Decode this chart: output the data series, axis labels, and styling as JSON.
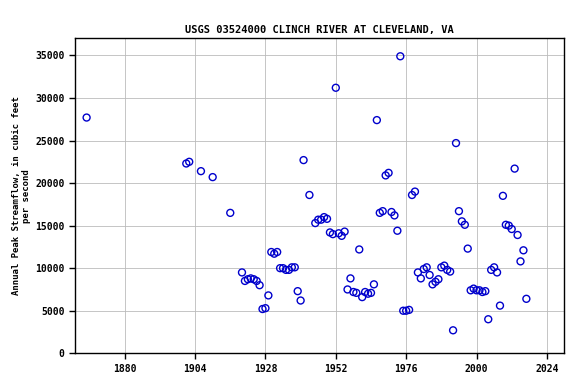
{
  "title": "USGS 03524000 CLINCH RIVER AT CLEVELAND, VA",
  "ylabel": "Annual Peak Streamflow, in cubic feet\nper second",
  "xlim": [
    1863,
    2030
  ],
  "ylim": [
    0,
    37000
  ],
  "yticks": [
    0,
    5000,
    10000,
    15000,
    20000,
    25000,
    30000,
    35000
  ],
  "xticks": [
    1880,
    1904,
    1928,
    1952,
    1976,
    2000,
    2024
  ],
  "marker_color": "#0000CC",
  "marker_size": 5,
  "marker_lw": 1.0,
  "background_color": "#ffffff",
  "grid_color": "#bbbbbb",
  "title_fontsize": 7.5,
  "label_fontsize": 6.5,
  "tick_fontsize": 7,
  "data": [
    [
      1867,
      27700
    ],
    [
      1901,
      22300
    ],
    [
      1902,
      22500
    ],
    [
      1906,
      21400
    ],
    [
      1910,
      20700
    ],
    [
      1916,
      16500
    ],
    [
      1920,
      9500
    ],
    [
      1921,
      8500
    ],
    [
      1922,
      8700
    ],
    [
      1923,
      8800
    ],
    [
      1924,
      8700
    ],
    [
      1925,
      8500
    ],
    [
      1926,
      8000
    ],
    [
      1927,
      5200
    ],
    [
      1928,
      5300
    ],
    [
      1929,
      6800
    ],
    [
      1930,
      11900
    ],
    [
      1931,
      11700
    ],
    [
      1932,
      11900
    ],
    [
      1933,
      10000
    ],
    [
      1934,
      10000
    ],
    [
      1935,
      9800
    ],
    [
      1936,
      9800
    ],
    [
      1937,
      10100
    ],
    [
      1938,
      10100
    ],
    [
      1939,
      7300
    ],
    [
      1940,
      6200
    ],
    [
      1941,
      22700
    ],
    [
      1943,
      18600
    ],
    [
      1945,
      15300
    ],
    [
      1946,
      15700
    ],
    [
      1947,
      15700
    ],
    [
      1948,
      16000
    ],
    [
      1949,
      15800
    ],
    [
      1950,
      14200
    ],
    [
      1951,
      14000
    ],
    [
      1952,
      31200
    ],
    [
      1953,
      14100
    ],
    [
      1954,
      13800
    ],
    [
      1955,
      14300
    ],
    [
      1956,
      7500
    ],
    [
      1957,
      8800
    ],
    [
      1958,
      7200
    ],
    [
      1959,
      7100
    ],
    [
      1960,
      12200
    ],
    [
      1961,
      6600
    ],
    [
      1962,
      7200
    ],
    [
      1963,
      7000
    ],
    [
      1964,
      7100
    ],
    [
      1965,
      8100
    ],
    [
      1966,
      27400
    ],
    [
      1967,
      16500
    ],
    [
      1968,
      16700
    ],
    [
      1969,
      20900
    ],
    [
      1970,
      21200
    ],
    [
      1971,
      16600
    ],
    [
      1972,
      16200
    ],
    [
      1973,
      14400
    ],
    [
      1974,
      34900
    ],
    [
      1975,
      5000
    ],
    [
      1976,
      5000
    ],
    [
      1977,
      5100
    ],
    [
      1978,
      18600
    ],
    [
      1979,
      19000
    ],
    [
      1980,
      9500
    ],
    [
      1981,
      8800
    ],
    [
      1982,
      9900
    ],
    [
      1983,
      10100
    ],
    [
      1984,
      9200
    ],
    [
      1985,
      8100
    ],
    [
      1986,
      8400
    ],
    [
      1987,
      8700
    ],
    [
      1988,
      10100
    ],
    [
      1989,
      10300
    ],
    [
      1990,
      9800
    ],
    [
      1991,
      9600
    ],
    [
      1992,
      2700
    ],
    [
      1993,
      24700
    ],
    [
      1994,
      16700
    ],
    [
      1995,
      15500
    ],
    [
      1996,
      15100
    ],
    [
      1997,
      12300
    ],
    [
      1998,
      7400
    ],
    [
      1999,
      7600
    ],
    [
      2000,
      7400
    ],
    [
      2001,
      7400
    ],
    [
      2002,
      7200
    ],
    [
      2003,
      7300
    ],
    [
      2004,
      4000
    ],
    [
      2005,
      9800
    ],
    [
      2006,
      10100
    ],
    [
      2007,
      9500
    ],
    [
      2008,
      5600
    ],
    [
      2009,
      18500
    ],
    [
      2010,
      15100
    ],
    [
      2011,
      15000
    ],
    [
      2012,
      14600
    ],
    [
      2013,
      21700
    ],
    [
      2014,
      13900
    ],
    [
      2015,
      10800
    ],
    [
      2016,
      12100
    ],
    [
      2017,
      6400
    ]
  ]
}
